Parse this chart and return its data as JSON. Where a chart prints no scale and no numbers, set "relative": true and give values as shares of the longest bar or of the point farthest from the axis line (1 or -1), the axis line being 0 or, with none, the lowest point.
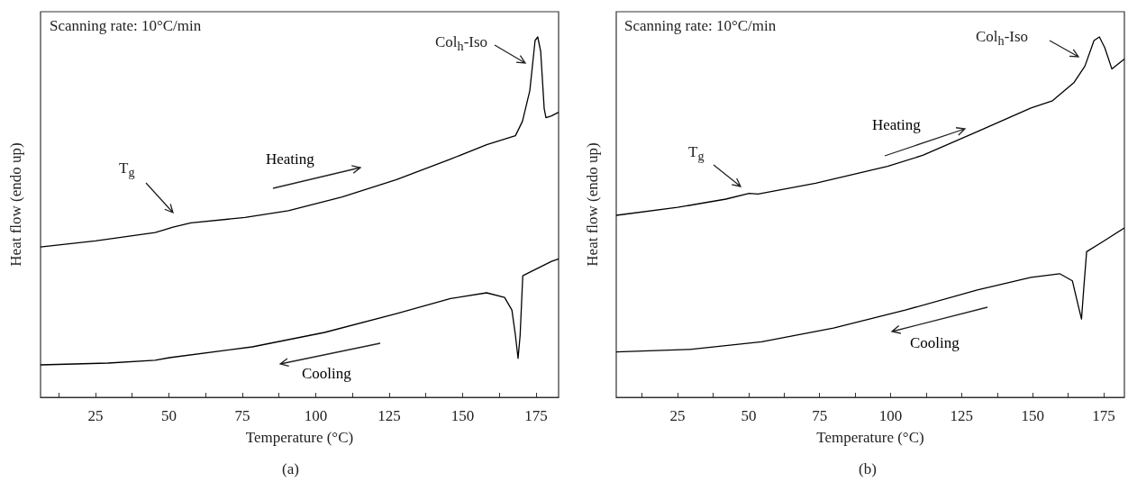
{
  "chart_data": [
    {
      "type": "line",
      "relative": true,
      "xlabel": "Temperature (°C)",
      "ylabel": "Heat flow (endo up)",
      "xlim": [
        6.3,
        182.7
      ],
      "xticks": [
        {
          "value": 12.5,
          "label": null
        },
        25,
        {
          "value": 37.5,
          "label": null
        },
        50,
        {
          "value": 62.5,
          "label": null
        },
        75,
        {
          "value": 87.5,
          "label": null
        },
        100,
        {
          "value": 112.5,
          "label": null
        },
        125,
        {
          "value": 137.5,
          "label": null
        },
        150,
        {
          "value": 162.5,
          "label": null
        },
        175
      ],
      "grid": false,
      "marker": "none",
      "line_style": "solid",
      "annotations": [
        "Scanning rate: 10°C/min",
        "T$_{g}$",
        "Col$_{h}$-Iso",
        "(a)"
      ],
      "series": [
        {
          "name": "Heating",
          "color": "#000000",
          "x": [
            6.3,
            25,
            45.3,
            51.4,
            57.5,
            75.9,
            90.7,
            109,
            127.5,
            145.9,
            158.2,
            168,
            170.4,
            172.9,
            174.7,
            175.6,
            176.6,
            177.8,
            178.4,
            180.3,
            182.7
          ],
          "values": [
            0.417,
            0.434,
            0.457,
            0.472,
            0.484,
            0.499,
            0.518,
            0.556,
            0.604,
            0.661,
            0.701,
            0.726,
            0.766,
            0.851,
            0.99,
            1,
            0.96,
            0.801,
            0.776,
            0.781,
            0.791
          ]
        },
        {
          "name": "Cooling",
          "color": "#000000",
          "x": [
            6.3,
            29.3,
            45.3,
            50.2,
            78.4,
            103,
            127.5,
            145.9,
            158.2,
            164.3,
            166.8,
            168,
            168.9,
            169.6,
            170.5,
            172.9,
            180.3,
            182.7
          ],
          "values": [
            0.09,
            0.095,
            0.103,
            0.11,
            0.14,
            0.18,
            0.232,
            0.274,
            0.29,
            0.277,
            0.242,
            0.172,
            0.108,
            0.172,
            0.337,
            0.347,
            0.377,
            0.384
          ]
        }
      ]
    },
    {
      "type": "line",
      "relative": true,
      "xlabel": "Temperature (°C)",
      "ylabel": "Heat flow (endo up)",
      "xlim": [
        3.4,
        182.3
      ],
      "xticks": [
        {
          "value": 12.5,
          "label": null
        },
        25,
        {
          "value": 37.5,
          "label": null
        },
        50,
        {
          "value": 62.5,
          "label": null
        },
        75,
        {
          "value": 87.5,
          "label": null
        },
        100,
        {
          "value": 112.5,
          "label": null
        },
        125,
        {
          "value": 137.5,
          "label": null
        },
        150,
        {
          "value": 162.5,
          "label": null
        },
        175
      ],
      "grid": false,
      "marker": "none",
      "line_style": "solid",
      "annotations": [
        "Scanning rate: 10°C/min",
        "T$_{g}$",
        "Col$_{h}$-Iso",
        "(b)"
      ],
      "series": [
        {
          "name": "Heating",
          "color": "#000000",
          "x": [
            3.4,
            25,
            42,
            50.2,
            53.3,
            73.6,
            98.9,
            111.5,
            130.5,
            149.4,
            157,
            164.6,
            168.4,
            171.6,
            173.5,
            175.4,
            177.9,
            182.3
          ],
          "values": [
            0.505,
            0.527,
            0.55,
            0.566,
            0.564,
            0.594,
            0.641,
            0.672,
            0.737,
            0.803,
            0.823,
            0.874,
            0.919,
            0.99,
            1,
            0.97,
            0.911,
            0.939
          ]
        },
        {
          "name": "Cooling",
          "color": "#000000",
          "x": [
            3.4,
            29.3,
            54.6,
            79.9,
            105.2,
            130.5,
            149.4,
            159.5,
            164,
            166.1,
            167.2,
            168,
            169,
            174.7,
            182.3
          ],
          "values": [
            0.126,
            0.133,
            0.154,
            0.192,
            0.242,
            0.298,
            0.333,
            0.343,
            0.323,
            0.253,
            0.217,
            0.303,
            0.404,
            0.432,
            0.47
          ]
        }
      ]
    }
  ]
}
